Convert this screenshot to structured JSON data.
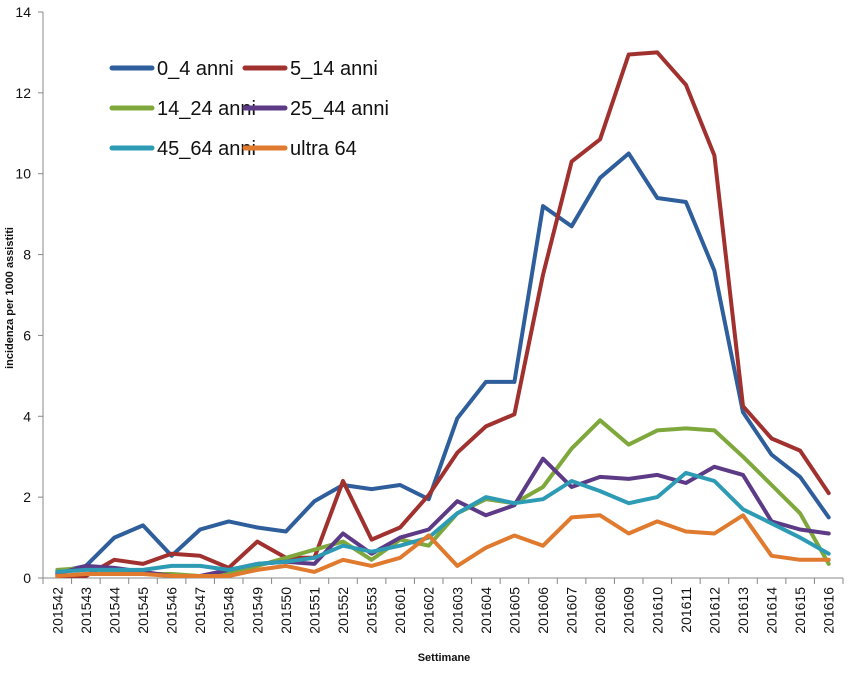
{
  "chart_data": {
    "type": "line",
    "title": "",
    "xlabel": "Settimane",
    "ylabel": "incidenza per 1000 assistiti",
    "ylim": [
      0,
      14
    ],
    "yticks": [
      0,
      2,
      4,
      6,
      8,
      10,
      12,
      14
    ],
    "grid": false,
    "legend_position": "top-left",
    "categories": [
      "201542",
      "201543",
      "201544",
      "201545",
      "201546",
      "201547",
      "201548",
      "201549",
      "201550",
      "201551",
      "201552",
      "201553",
      "201601",
      "201602",
      "201603",
      "201604",
      "201605",
      "201606",
      "201607",
      "201608",
      "201609",
      "201610",
      "201611",
      "201612",
      "201613",
      "201614",
      "201615",
      "201616"
    ],
    "series": [
      {
        "name": "0_4 anni",
        "color": "#2E5E9B",
        "values": [
          0.15,
          0.3,
          1.0,
          1.3,
          0.55,
          1.2,
          1.4,
          1.25,
          1.15,
          1.9,
          2.3,
          2.2,
          2.3,
          1.95,
          3.95,
          4.85,
          4.85,
          9.2,
          8.7,
          9.9,
          10.5,
          9.4,
          9.3,
          7.6,
          4.1,
          3.05,
          2.5,
          1.5
        ]
      },
      {
        "name": "5_14 anni",
        "color": "#A0312F",
        "values": [
          0.05,
          0.05,
          0.45,
          0.35,
          0.6,
          0.55,
          0.25,
          0.9,
          0.5,
          0.5,
          2.4,
          0.95,
          1.25,
          2.05,
          3.1,
          3.75,
          4.05,
          7.5,
          10.3,
          10.85,
          12.95,
          13.0,
          12.2,
          10.45,
          4.25,
          3.45,
          3.15,
          2.1
        ]
      },
      {
        "name": "14_24 anni",
        "color": "#7FA83C",
        "values": [
          0.2,
          0.25,
          0.15,
          0.1,
          0.1,
          0.05,
          0.1,
          0.3,
          0.5,
          0.7,
          0.9,
          0.45,
          0.95,
          0.8,
          1.6,
          1.95,
          1.85,
          2.25,
          3.2,
          3.9,
          3.3,
          3.65,
          3.7,
          3.65,
          3.0,
          2.3,
          1.6,
          0.35
        ]
      },
      {
        "name": "25_44 anni",
        "color": "#5D3A86",
        "values": [
          0.1,
          0.3,
          0.25,
          0.15,
          0.05,
          0.05,
          0.2,
          0.35,
          0.4,
          0.35,
          1.1,
          0.6,
          1.0,
          1.2,
          1.9,
          1.55,
          1.8,
          2.95,
          2.25,
          2.5,
          2.45,
          2.55,
          2.35,
          2.75,
          2.55,
          1.4,
          1.2,
          1.1
        ]
      },
      {
        "name": "45_64 anni",
        "color": "#2E9BB5",
        "values": [
          0.15,
          0.2,
          0.2,
          0.2,
          0.3,
          0.3,
          0.2,
          0.35,
          0.4,
          0.5,
          0.8,
          0.65,
          0.8,
          1.0,
          1.6,
          2.0,
          1.85,
          1.95,
          2.4,
          2.15,
          1.85,
          2.0,
          2.6,
          2.4,
          1.7,
          1.35,
          1.0,
          0.6
        ]
      },
      {
        "name": "ultra 64",
        "color": "#E07A2E",
        "values": [
          0.05,
          0.1,
          0.1,
          0.1,
          0.05,
          0.05,
          0.05,
          0.2,
          0.3,
          0.15,
          0.45,
          0.3,
          0.5,
          1.05,
          0.3,
          0.75,
          1.05,
          0.8,
          1.5,
          1.55,
          1.1,
          1.4,
          1.15,
          1.1,
          1.55,
          0.55,
          0.45,
          0.45
        ]
      }
    ]
  }
}
